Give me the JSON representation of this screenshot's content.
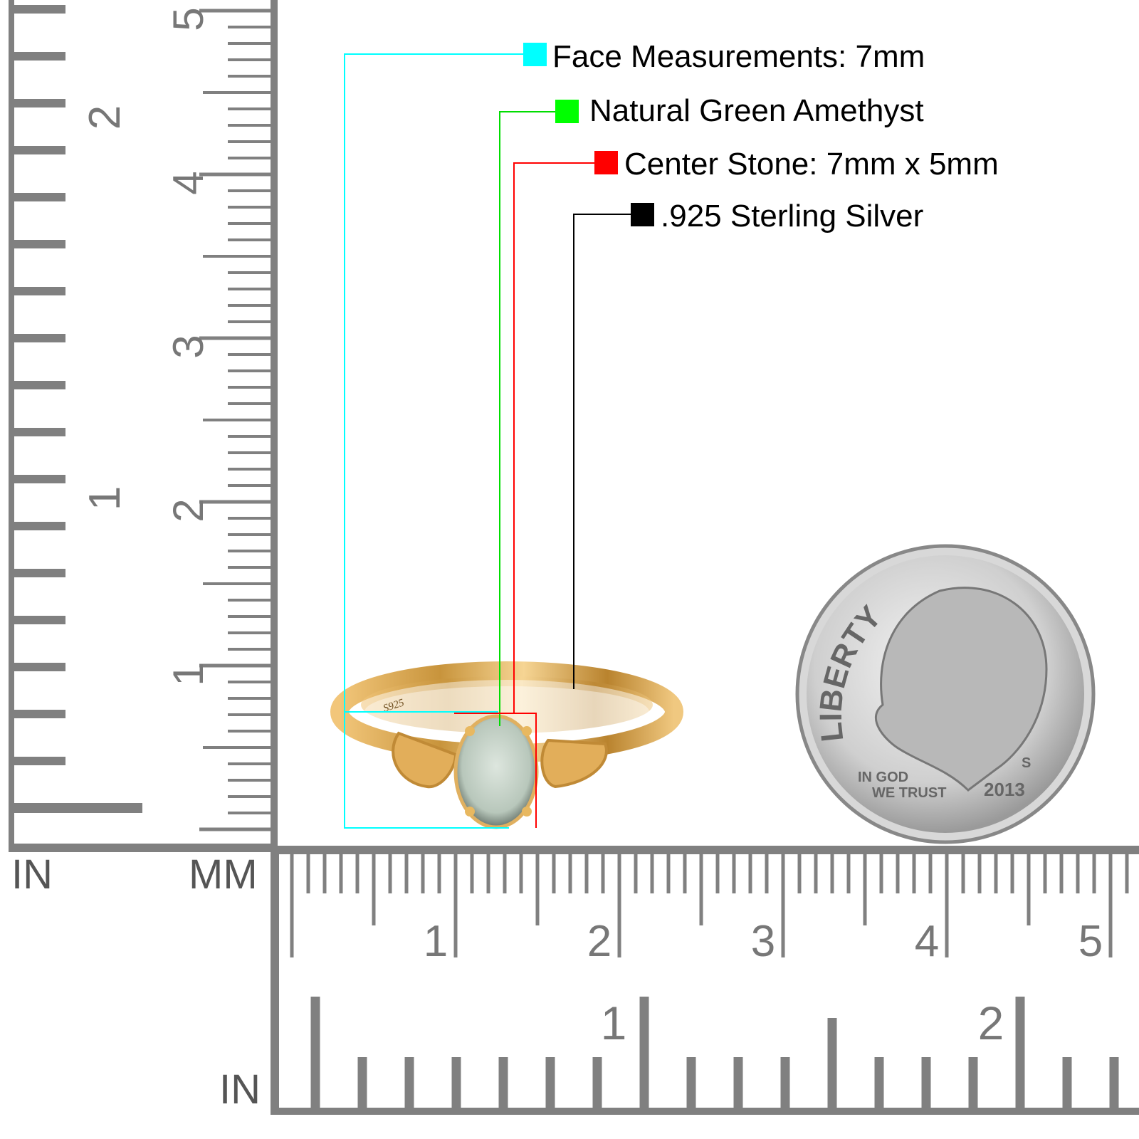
{
  "callouts": [
    {
      "text": "Face Measurements: 7mm",
      "color": "#00FFFF"
    },
    {
      "text": "Natural Green Amethyst",
      "color": "#00FF00"
    },
    {
      "text": "Center Stone: 7mm x 5mm",
      "color": "#FF0000"
    },
    {
      "text": ".925 Sterling Silver",
      "color": "#000000"
    }
  ],
  "rulers": {
    "left_unit_in": "IN",
    "left_unit_mm": "MM",
    "bottom_unit_in": "IN",
    "mm_labels": [
      "1",
      "2",
      "3",
      "4",
      "5"
    ],
    "in_labels": [
      "1",
      "2"
    ],
    "color": "#808080"
  },
  "ring": {
    "stamp": "S925",
    "metal_color": "#E8B860",
    "stone_color": "#C9D6CC"
  },
  "coin": {
    "motto_top": "LIBERTY",
    "motto_1": "IN GOD",
    "motto_2": "WE TRUST",
    "year": "2013",
    "mint": "S"
  }
}
